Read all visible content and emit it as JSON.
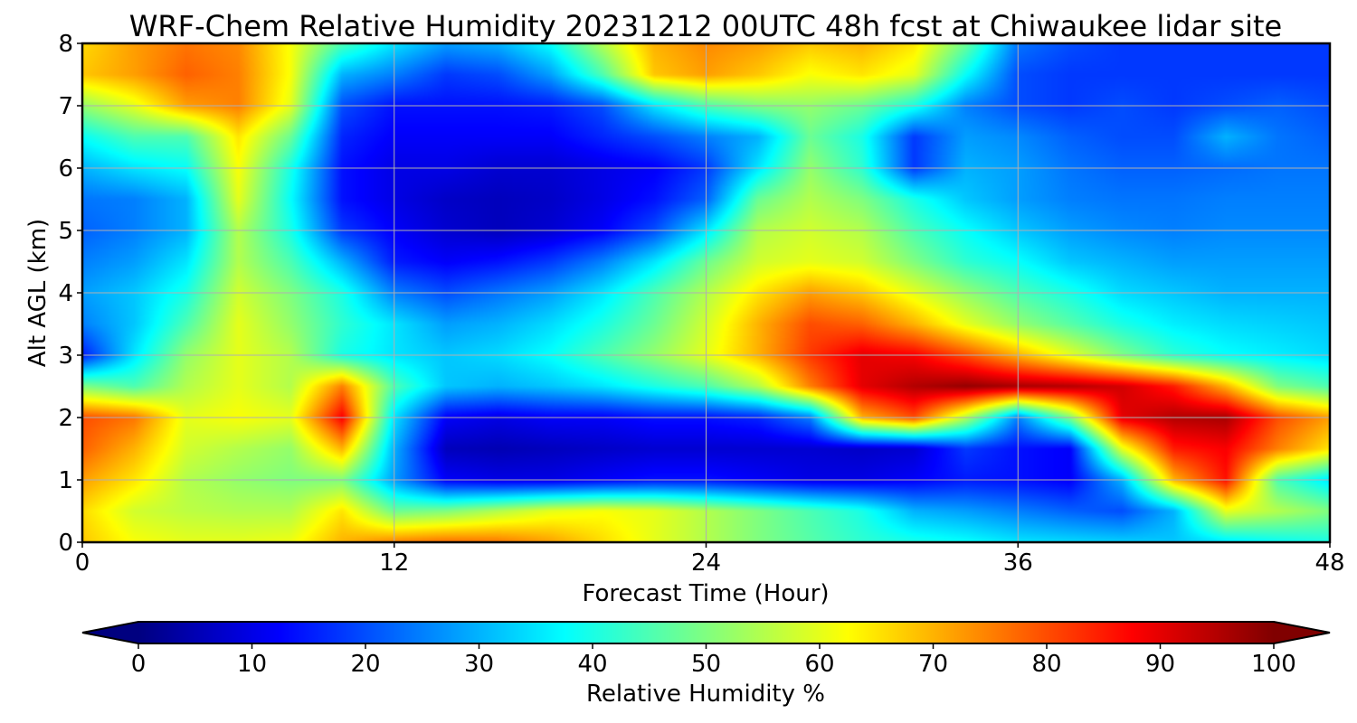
{
  "chart_data": {
    "type": "heatmap",
    "title": "WRF-Chem Relative Humidity 20231212 00UTC 48h fcst at Chiwaukee lidar site",
    "xlabel": "Forecast Time (Hour)",
    "ylabel": "Alt AGL (km)",
    "xlim": [
      0,
      48
    ],
    "ylim": [
      0,
      8
    ],
    "x_ticks": [
      "0",
      "12",
      "24",
      "36",
      "48"
    ],
    "y_ticks": [
      "0",
      "1",
      "2",
      "3",
      "4",
      "5",
      "6",
      "7",
      "8"
    ],
    "grid": true,
    "colorbar": {
      "label": "Relative Humidity %",
      "range": [
        0,
        100
      ],
      "ticks": [
        "0",
        "10",
        "20",
        "30",
        "40",
        "50",
        "60",
        "70",
        "80",
        "90",
        "100"
      ],
      "colormap": "jet",
      "extend": "both",
      "orientation": "horizontal",
      "placement": "bottom"
    },
    "x": [
      0,
      2,
      4,
      6,
      8,
      10,
      12,
      14,
      16,
      18,
      20,
      22,
      24,
      26,
      28,
      30,
      32,
      34,
      36,
      38,
      40,
      42,
      44,
      46,
      48
    ],
    "y": [
      0,
      0.5,
      1,
      1.5,
      2,
      2.5,
      3,
      3.5,
      4,
      4.5,
      5,
      5.5,
      6,
      6.5,
      7,
      7.5,
      8
    ],
    "z": [
      [
        68,
        62,
        60,
        60,
        61,
        70,
        75,
        77,
        76,
        72,
        66,
        60,
        55,
        50,
        46,
        42,
        40,
        38,
        35,
        34,
        33,
        32,
        35,
        38,
        40
      ],
      [
        66,
        58,
        56,
        55,
        55,
        65,
        48,
        50,
        55,
        60,
        62,
        60,
        55,
        50,
        45,
        40,
        30,
        28,
        25,
        22,
        20,
        30,
        60,
        55,
        50
      ],
      [
        72,
        65,
        55,
        52,
        50,
        50,
        28,
        12,
        10,
        10,
        12,
        14,
        14,
        12,
        10,
        10,
        12,
        15,
        14,
        12,
        30,
        70,
        86,
        45,
        35
      ],
      [
        78,
        70,
        58,
        55,
        52,
        70,
        30,
        6,
        5,
        6,
        7,
        8,
        8,
        8,
        8,
        7,
        8,
        18,
        14,
        12,
        60,
        85,
        88,
        75,
        65
      ],
      [
        80,
        76,
        60,
        62,
        60,
        88,
        35,
        12,
        10,
        12,
        12,
        14,
        14,
        16,
        25,
        70,
        80,
        55,
        25,
        50,
        90,
        95,
        96,
        80,
        72
      ],
      [
        50,
        45,
        55,
        60,
        55,
        75,
        45,
        32,
        30,
        32,
        35,
        40,
        45,
        55,
        75,
        90,
        95,
        98,
        96,
        95,
        92,
        85,
        70,
        50,
        45
      ],
      [
        15,
        35,
        52,
        60,
        55,
        40,
        35,
        32,
        34,
        38,
        45,
        52,
        60,
        70,
        82,
        90,
        88,
        80,
        70,
        60,
        50,
        42,
        38,
        36,
        34
      ],
      [
        25,
        32,
        45,
        60,
        52,
        42,
        35,
        28,
        30,
        34,
        40,
        48,
        58,
        70,
        80,
        78,
        70,
        60,
        52,
        46,
        40,
        36,
        34,
        33,
        32
      ],
      [
        28,
        32,
        40,
        58,
        50,
        40,
        25,
        20,
        24,
        28,
        35,
        45,
        55,
        65,
        72,
        68,
        60,
        52,
        45,
        40,
        34,
        32,
        30,
        30,
        30
      ],
      [
        25,
        28,
        35,
        55,
        45,
        30,
        15,
        12,
        14,
        18,
        25,
        35,
        48,
        58,
        60,
        58,
        50,
        42,
        38,
        32,
        30,
        28,
        28,
        28,
        28
      ],
      [
        22,
        25,
        30,
        55,
        40,
        18,
        12,
        8,
        6,
        8,
        12,
        20,
        35,
        55,
        58,
        55,
        45,
        38,
        32,
        28,
        26,
        25,
        26,
        26,
        26
      ],
      [
        24,
        25,
        30,
        60,
        38,
        14,
        10,
        7,
        6,
        7,
        10,
        14,
        22,
        48,
        55,
        50,
        40,
        32,
        28,
        25,
        24,
        24,
        25,
        25,
        25
      ],
      [
        30,
        35,
        38,
        62,
        40,
        14,
        10,
        10,
        8,
        8,
        10,
        12,
        18,
        35,
        52,
        42,
        18,
        30,
        28,
        24,
        22,
        22,
        23,
        24,
        24
      ],
      [
        38,
        45,
        45,
        65,
        48,
        16,
        12,
        12,
        12,
        12,
        16,
        20,
        25,
        30,
        48,
        40,
        18,
        28,
        26,
        22,
        20,
        20,
        30,
        24,
        22
      ],
      [
        52,
        60,
        72,
        75,
        60,
        20,
        14,
        14,
        14,
        15,
        20,
        35,
        45,
        50,
        52,
        48,
        40,
        25,
        20,
        18,
        20,
        18,
        20,
        22,
        20
      ],
      [
        68,
        72,
        78,
        75,
        62,
        30,
        25,
        18,
        20,
        28,
        45,
        68,
        72,
        68,
        62,
        65,
        60,
        38,
        20,
        18,
        18,
        18,
        18,
        18,
        18
      ],
      [
        66,
        72,
        76,
        74,
        62,
        45,
        35,
        28,
        30,
        38,
        55,
        70,
        74,
        72,
        68,
        70,
        65,
        48,
        24,
        20,
        18,
        18,
        18,
        18,
        18
      ]
    ]
  }
}
